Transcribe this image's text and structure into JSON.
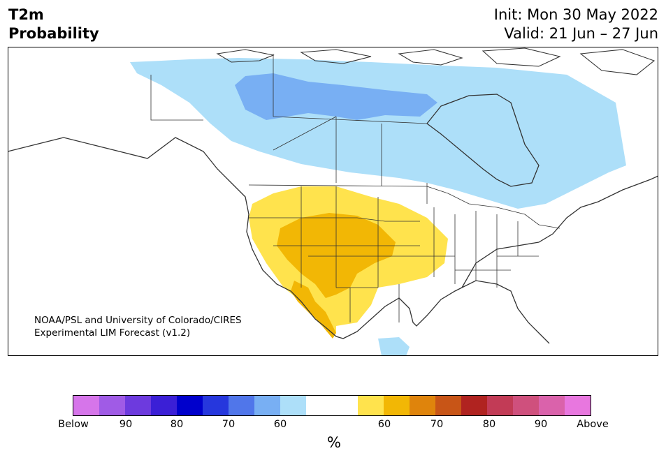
{
  "title_left": [
    "T2m",
    "Probability"
  ],
  "title_right": [
    "Init: Mon 30 May 2022",
    "Valid: 21 Jun – 27 Jun"
  ],
  "credit": [
    "NOAA/PSL and University of Colorado/CIRES",
    "Experimental LIM Forecast (v1.2)"
  ],
  "colorbar": {
    "colors": [
      "#d675ea",
      "#a05be6",
      "#6d3ade",
      "#3b1fd6",
      "#0000cc",
      "#2637dd",
      "#5076ea",
      "#78aff3",
      "#addff9",
      "#ffffff",
      "#ffffff",
      "#ffe34d",
      "#f2b705",
      "#df840c",
      "#c85517",
      "#b02320",
      "#c23b56",
      "#cf507d",
      "#da62ab",
      "#e877df"
    ],
    "tick_labels": [
      "Below",
      "90",
      "80",
      "70",
      "60",
      "60",
      "70",
      "80",
      "90",
      "Above"
    ],
    "unit": "%"
  },
  "map_colors": {
    "ocean": "#ffffff",
    "land_outline": "#333333",
    "below_50_60": "#addff9",
    "below_60_70": "#78aff3",
    "above_50_60": "#ffe34d",
    "above_60_70": "#f2b705",
    "above_70_80": "#df840c"
  }
}
